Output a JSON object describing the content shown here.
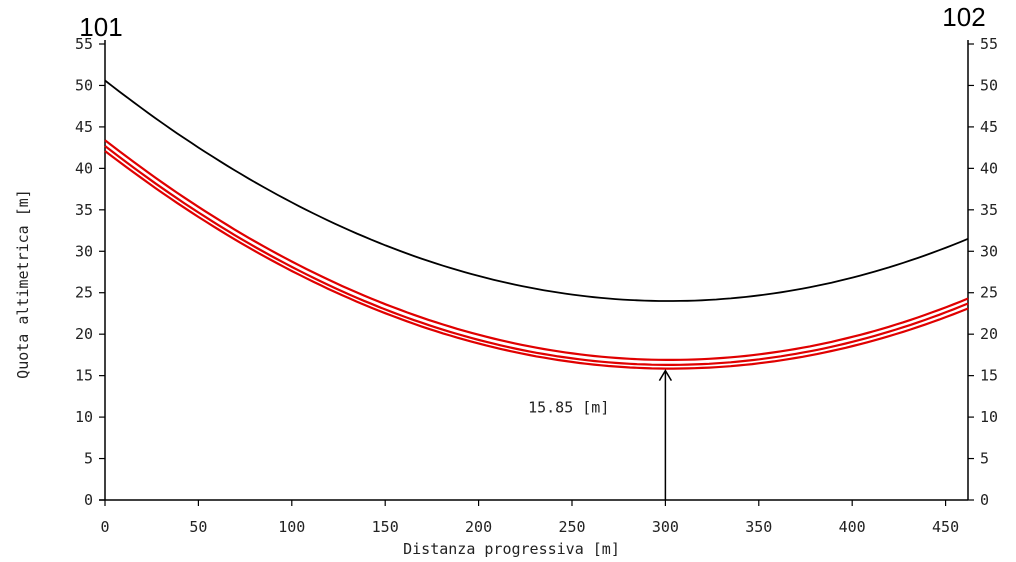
{
  "chart_data": {
    "type": "line",
    "xlabel": "Distanza progressiva [m]",
    "ylabel": "Quota altimetrica [m]",
    "xlim": [
      0,
      462
    ],
    "ylim": [
      0,
      55
    ],
    "x_ticks": [
      0,
      50,
      100,
      150,
      200,
      250,
      300,
      350,
      400,
      450
    ],
    "y_ticks": [
      0,
      5,
      10,
      15,
      20,
      25,
      30,
      35,
      40,
      45,
      50,
      55
    ],
    "grid": false,
    "start_label": "101",
    "end_label": "102",
    "series": [
      {
        "color": "#000000",
        "x": [
          0,
          300,
          462
        ],
        "y": [
          50.6,
          24.0,
          31.5
        ]
      },
      {
        "color": "#e00000",
        "x": [
          0,
          300,
          462
        ],
        "y": [
          43.4,
          16.9,
          24.3
        ]
      },
      {
        "color": "#e00000",
        "x": [
          0,
          300,
          462
        ],
        "y": [
          42.7,
          16.3,
          23.7
        ]
      },
      {
        "color": "#e00000",
        "x": [
          0,
          300,
          462
        ],
        "y": [
          42.1,
          15.85,
          23.1
        ]
      }
    ],
    "annotation": {
      "x": 300,
      "y_from": 0,
      "y_to": 15.85,
      "label": "15.85 [m]"
    }
  }
}
